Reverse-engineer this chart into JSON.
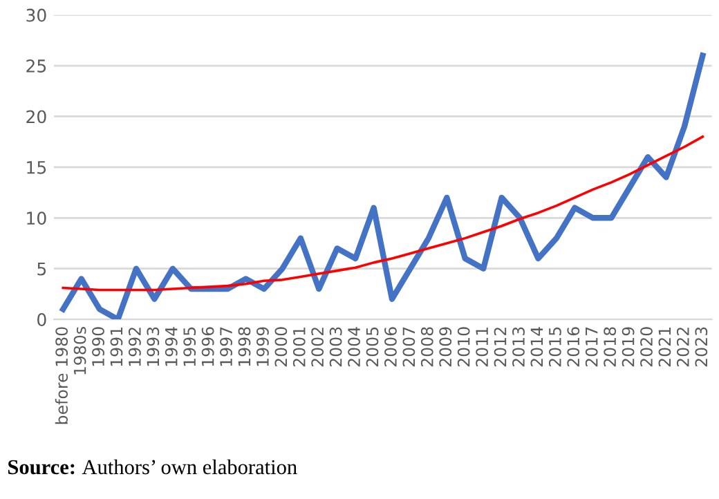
{
  "chart_data": {
    "type": "line",
    "categories": [
      "before 1980",
      "1980s",
      "1990",
      "1991",
      "1992",
      "1993",
      "1994",
      "1995",
      "1996",
      "1997",
      "1998",
      "1999",
      "2000",
      "2001",
      "2002",
      "2003",
      "2004",
      "2005",
      "2006",
      "2007",
      "2008",
      "2009",
      "2010",
      "2011",
      "2012",
      "2013",
      "2014",
      "2015",
      "2016",
      "2017",
      "2018",
      "2019",
      "2020",
      "2021",
      "2022",
      "2023"
    ],
    "series": [
      {
        "color": "#4472c4",
        "values": [
          1,
          4,
          1,
          0,
          5,
          2,
          5,
          3,
          3,
          3,
          4,
          3,
          5,
          8,
          3,
          7,
          6,
          11,
          2,
          5,
          8,
          12,
          6,
          5,
          12,
          10,
          6,
          8,
          11,
          10,
          10,
          13,
          16,
          14,
          19,
          26
        ]
      },
      {
        "type": "line",
        "color": "#ff0000",
        "values": [
          3.1,
          3.0,
          2.9,
          2.9,
          2.9,
          2.9,
          3.0,
          3.1,
          3.2,
          3.3,
          3.5,
          3.8,
          3.9,
          4.2,
          4.5,
          4.8,
          5.1,
          5.6,
          6.0,
          6.5,
          7.0,
          7.5,
          8.0,
          8.6,
          9.2,
          9.9,
          10.5,
          11.2,
          12.0,
          12.8,
          13.5,
          14.3,
          15.2,
          16.1,
          17.0,
          18.0
        ]
      }
    ],
    "ylim": [
      0,
      30
    ],
    "yticks": [
      0,
      5,
      10,
      15,
      20,
      25,
      30
    ],
    "grid": "y",
    "legend": false,
    "annotations": [
      "Source: Authors’ own elaboration"
    ]
  }
}
